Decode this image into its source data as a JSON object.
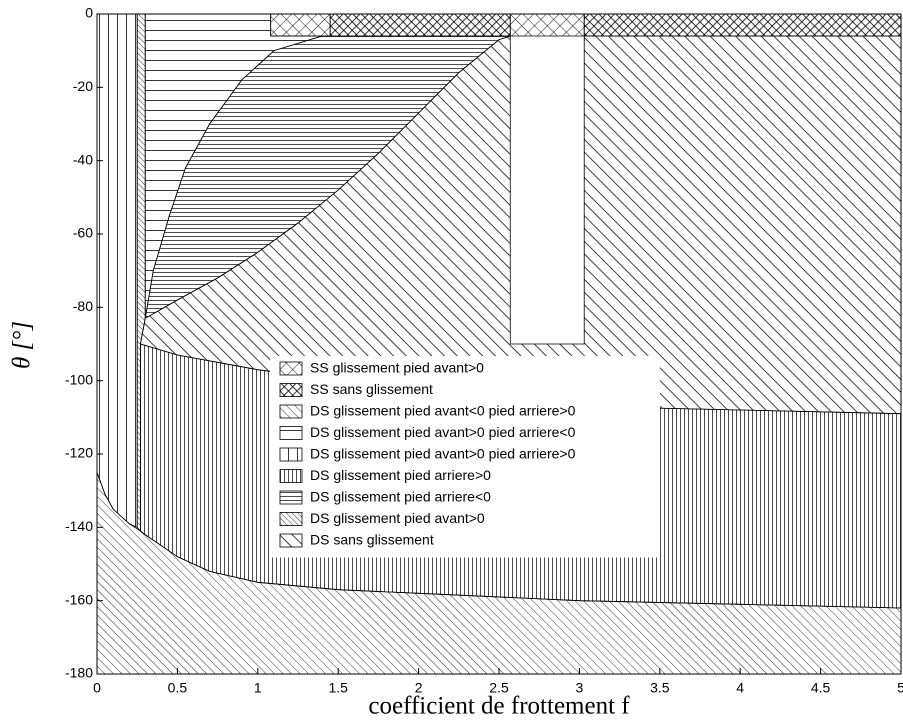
{
  "chart_data": {
    "type": "region",
    "xlabel": "coefficient de frottement f",
    "ylabel": "θ [°]",
    "xlim": [
      0,
      5
    ],
    "ylim": [
      -180,
      0
    ],
    "xticks": [
      0,
      0.5,
      1,
      1.5,
      2,
      2.5,
      3,
      3.5,
      4,
      4.5,
      5
    ],
    "yticks": [
      0,
      -20,
      -40,
      -60,
      -80,
      -100,
      -120,
      -140,
      -160,
      -180
    ],
    "legend": "center",
    "series": [
      {
        "name": "SS glissement pied avant>0",
        "pattern": "cross-light",
        "polygons": [
          {
            "x": [
              1.08,
              1.45,
              1.45,
              1.08
            ],
            "y": [
              0,
              0,
              -6,
              -6
            ]
          },
          {
            "x": [
              2.57,
              3.03,
              3.03,
              2.57
            ],
            "y": [
              0,
              0,
              -6,
              -6
            ]
          }
        ]
      },
      {
        "name": "SS sans glissement",
        "pattern": "cross-dense",
        "polygons": [
          {
            "x": [
              1.45,
              2.57,
              2.57,
              1.45
            ],
            "y": [
              0,
              0,
              -6,
              -6
            ]
          },
          {
            "x": [
              3.03,
              5,
              5,
              3.03
            ],
            "y": [
              0,
              0,
              -6,
              -6
            ]
          }
        ]
      },
      {
        "name": "DS glissement pied avant<0 pied arriere>0",
        "pattern": "diag-thin",
        "polygons": [
          {
            "x": [
              0,
              0.05,
              0.1,
              0.2,
              0.27,
              0.3,
              0.4,
              0.5,
              0.7,
              1,
              1.5,
              2,
              3,
              4,
              5,
              5,
              0
            ],
            "y": [
              -125,
              -131,
              -135,
              -139,
              -141,
              -142,
              -145,
              -148,
              -152,
              -155,
              -157,
              -158,
              -160,
              -161,
              -162,
              -180,
              -180
            ]
          }
        ]
      },
      {
        "name": "DS glissement pied avant>0 pied arriere<0",
        "pattern": "horiz-sparse",
        "polygons": [
          {
            "x": [
              0.3,
              1.08,
              1.08,
              1.4,
              1.1,
              0.9,
              0.7,
              0.55,
              0.45,
              0.35,
              0.3
            ],
            "y": [
              0,
              0,
              -6,
              -6,
              -10,
              -18,
              -30,
              -42,
              -55,
              -70,
              -83
            ]
          }
        ]
      },
      {
        "name": "DS glissement pied avant>0 pied arriere>0",
        "pattern": "vert-sparse",
        "polygons": [
          {
            "x": [
              0,
              0.25,
              0.25,
              0.2,
              0.1,
              0.05,
              0
            ],
            "y": [
              0,
              0,
              -140,
              -139,
              -135,
              -131,
              -125
            ]
          }
        ]
      },
      {
        "name": "DS glissement pied arriere>0",
        "pattern": "vert-dense",
        "polygons": [
          {
            "x": [
              0.27,
              0.5,
              1,
              1.5,
              2,
              2.5,
              3,
              4,
              5,
              5,
              4,
              3,
              2,
              1.5,
              1,
              0.7,
              0.5,
              0.4,
              0.3,
              0.27
            ],
            "y": [
              -90,
              -93,
              -97,
              -100,
              -102,
              -105,
              -107,
              -108,
              -109,
              -162,
              -161,
              -160,
              -158,
              -157,
              -155,
              -152,
              -148,
              -145,
              -142,
              -141
            ]
          }
        ]
      },
      {
        "name": "DS glissement pied arriere<0",
        "pattern": "horiz-dense",
        "polygons": [
          {
            "x": [
              0.3,
              0.35,
              0.45,
              0.55,
              0.7,
              0.9,
              1.1,
              1.4,
              2.57,
              2.5,
              2.25,
              2,
              1.75,
              1.5,
              1.25,
              1,
              0.75,
              0.5
            ],
            "y": [
              -83,
              -70,
              -55,
              -42,
              -30,
              -18,
              -10,
              -6,
              -6,
              -7,
              -16,
              -27,
              -38,
              -48,
              -57,
              -65,
              -72,
              -78
            ]
          }
        ]
      },
      {
        "name": "DS glissement pied avant>0",
        "pattern": "diag-dense",
        "polygons": [
          {
            "x": [
              0.25,
              0.3,
              0.3,
              0.27,
              0.27,
              0.25
            ],
            "y": [
              0,
              0,
              -83,
              -90,
              -141,
              -140
            ]
          }
        ]
      },
      {
        "name": "DS sans glissement",
        "pattern": "diag-bold",
        "polygons": [
          {
            "x": [
              0.27,
              0.3,
              0.5,
              0.75,
              1,
              1.25,
              1.5,
              1.75,
              2,
              2.25,
              2.5,
              2.57,
              2.57,
              3.03,
              3.03,
              5,
              5,
              4,
              3,
              2.5,
              2,
              1.5,
              1,
              0.5
            ],
            "y": [
              -90,
              -83,
              -78,
              -72,
              -65,
              -57,
              -48,
              -38,
              -27,
              -16,
              -7,
              -6,
              -90,
              -90,
              -6,
              -6,
              -109,
              -108,
              -107,
              -105,
              -102,
              -100,
              -97,
              -93
            ]
          }
        ]
      }
    ]
  }
}
